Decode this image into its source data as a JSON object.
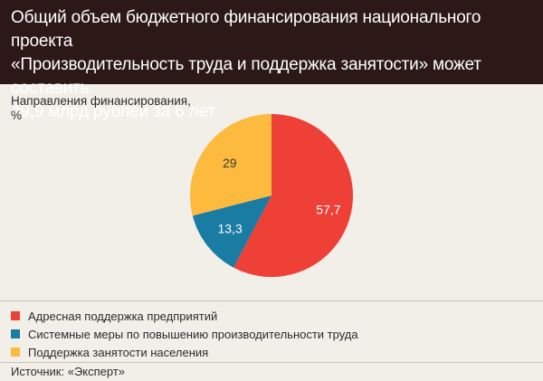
{
  "header": {
    "title_line1": "Общий объем бюджетного финансирования национального проекта",
    "title_line2": "«Производительность труда и поддержка занятости» может составить",
    "title_line3": "49,9 млрд рублей за 6 лет"
  },
  "subtitle_line1": "Направления финансирования,",
  "subtitle_line2": "%",
  "chart_data": {
    "type": "pie",
    "title": "Общий объем бюджетного финансирования национального проекта «Производительность труда и поддержка занятости» может составить 49,9 млрд рублей за 6 лет",
    "ylabel": "Направления финансирования, %",
    "slices": [
      {
        "name": "Адресная поддержка предприятий",
        "value": 57.7,
        "label": "57,7",
        "color": "#ee4037"
      },
      {
        "name": "Системные меры по повышению производительности труда",
        "value": 13.3,
        "label": "13,3",
        "color": "#1a7ba3"
      },
      {
        "name": "Поддержка занятости населения",
        "value": 29,
        "label": "29",
        "color": "#fcbb3f"
      }
    ],
    "start_angle_deg": 0,
    "direction": "clockwise",
    "legend_position": "bottom-left"
  },
  "legend": [
    {
      "label": "Адресная поддержка предприятий",
      "color": "#ee4037"
    },
    {
      "label": "Системные меры по повышению производительности труда",
      "color": "#1a7ba3"
    },
    {
      "label": "Поддержка занятости населения",
      "color": "#fcbb3f"
    }
  ],
  "source": "Источник: «Эксперт»"
}
